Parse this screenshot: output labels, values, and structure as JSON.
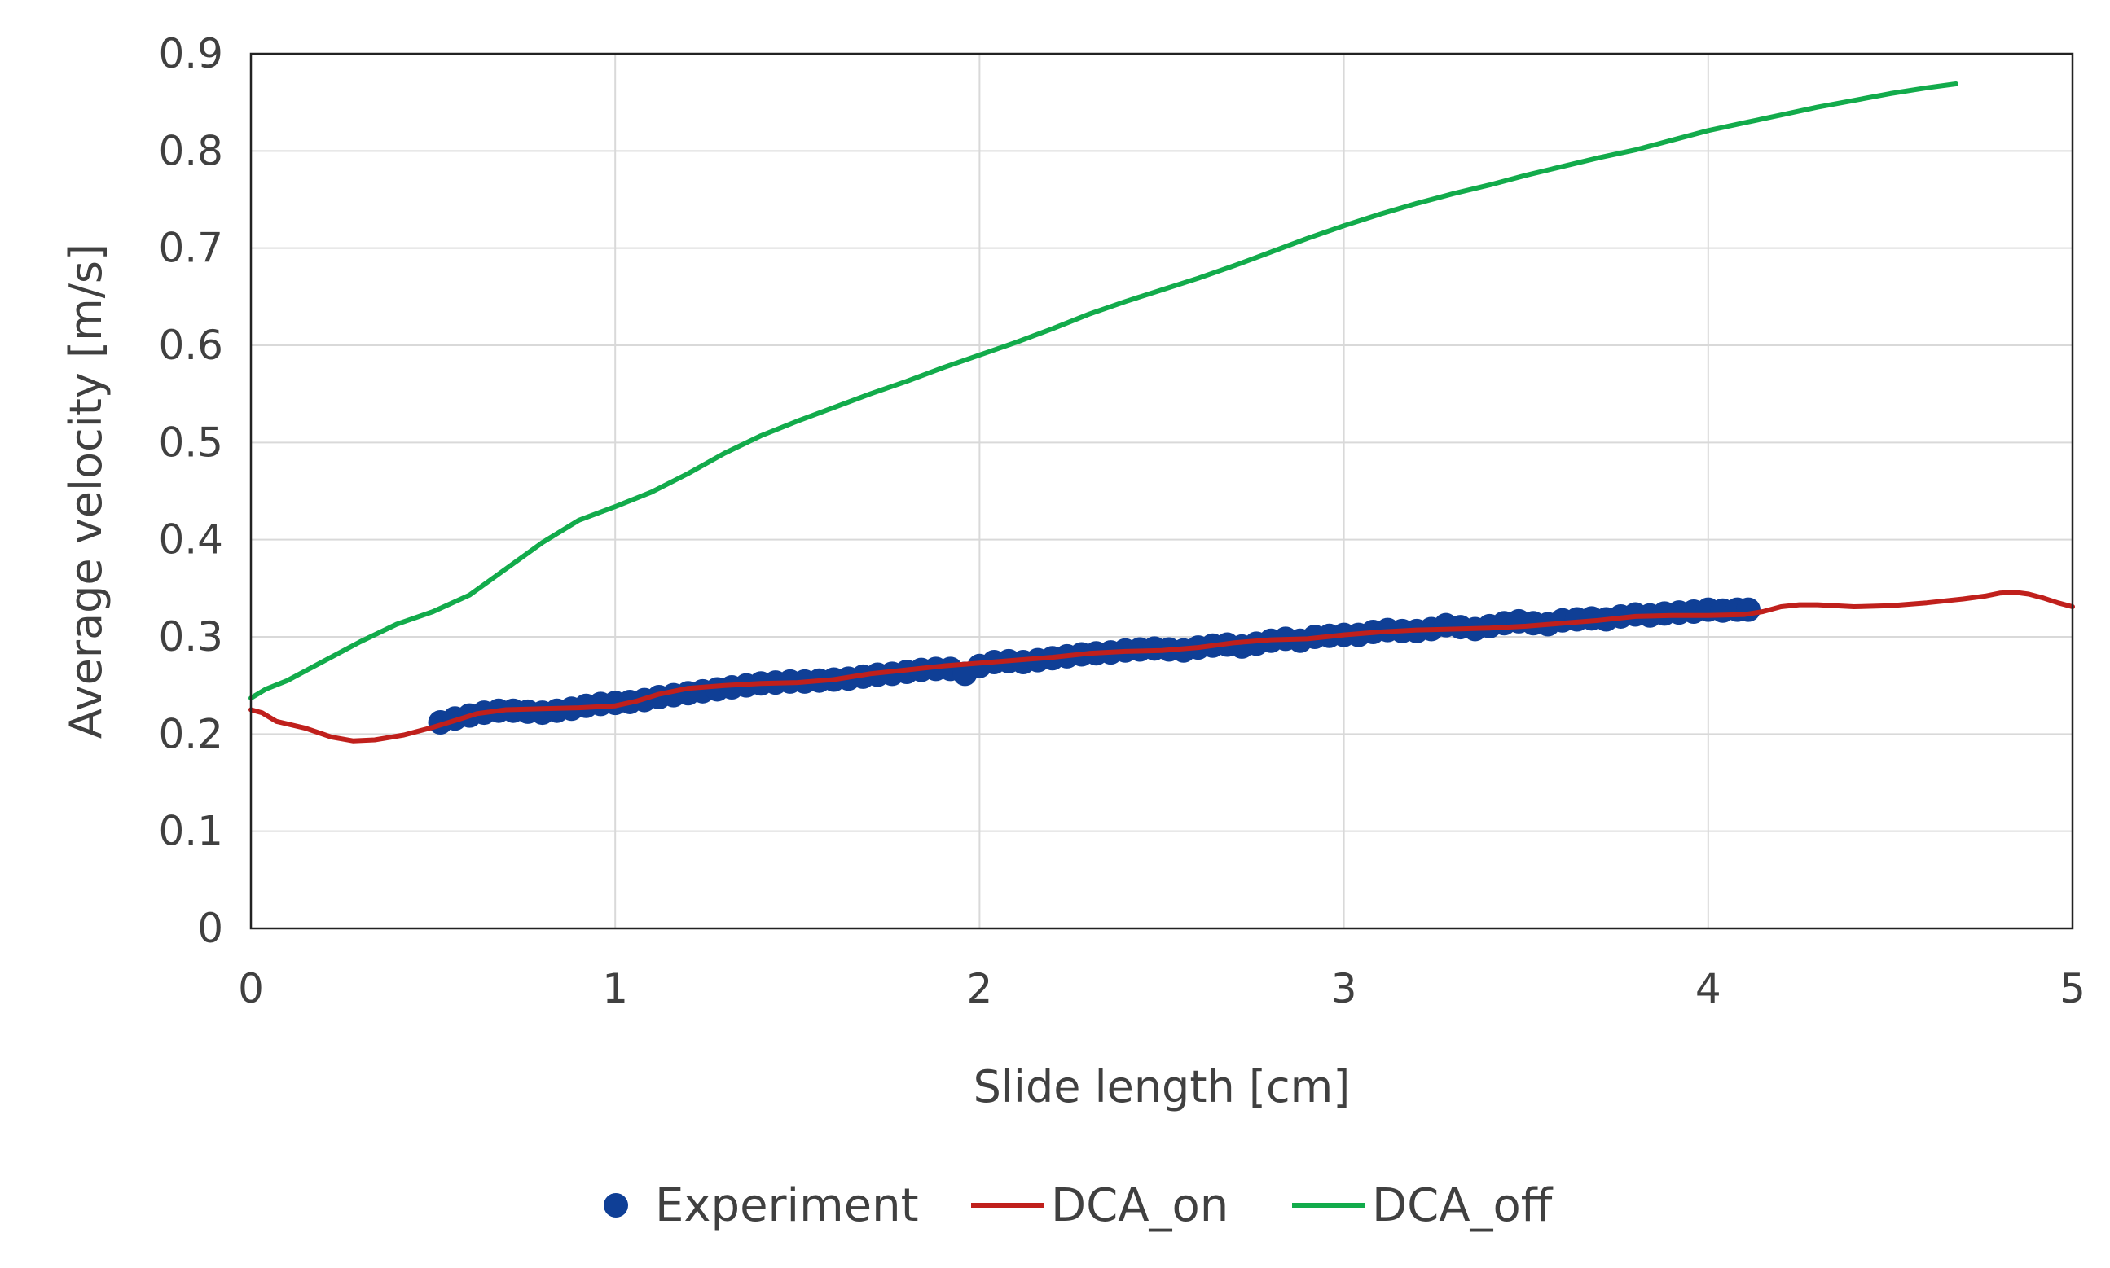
{
  "chart_data": {
    "type": "line",
    "title": "",
    "xlabel": "Slide length [cm]",
    "ylabel": "Average velocity [m/s]",
    "xlim": [
      0,
      5
    ],
    "ylim": [
      0,
      0.9
    ],
    "x_ticks": [
      "0",
      "1",
      "2",
      "3",
      "4",
      "5"
    ],
    "y_ticks": [
      "0",
      "0.1",
      "0.2",
      "0.3",
      "0.4",
      "0.5",
      "0.6",
      "0.7",
      "0.8",
      "0.9"
    ],
    "grid": true,
    "legend_position": "bottom",
    "series": [
      {
        "name": "Experiment",
        "kind": "scatter",
        "color": "#0f3f96",
        "points": [
          [
            0.52,
            0.212
          ],
          [
            0.56,
            0.216
          ],
          [
            0.6,
            0.219
          ],
          [
            0.64,
            0.222
          ],
          [
            0.68,
            0.224
          ],
          [
            0.72,
            0.224
          ],
          [
            0.76,
            0.223
          ],
          [
            0.8,
            0.222
          ],
          [
            0.84,
            0.224
          ],
          [
            0.88,
            0.226
          ],
          [
            0.92,
            0.229
          ],
          [
            0.96,
            0.231
          ],
          [
            1.0,
            0.232
          ],
          [
            1.04,
            0.233
          ],
          [
            1.08,
            0.235
          ],
          [
            1.12,
            0.238
          ],
          [
            1.16,
            0.24
          ],
          [
            1.2,
            0.242
          ],
          [
            1.24,
            0.244
          ],
          [
            1.28,
            0.246
          ],
          [
            1.32,
            0.248
          ],
          [
            1.36,
            0.25
          ],
          [
            1.4,
            0.252
          ],
          [
            1.44,
            0.253
          ],
          [
            1.48,
            0.254
          ],
          [
            1.52,
            0.254
          ],
          [
            1.56,
            0.255
          ],
          [
            1.6,
            0.256
          ],
          [
            1.64,
            0.257
          ],
          [
            1.68,
            0.259
          ],
          [
            1.72,
            0.261
          ],
          [
            1.76,
            0.262
          ],
          [
            1.8,
            0.264
          ],
          [
            1.84,
            0.266
          ],
          [
            1.88,
            0.267
          ],
          [
            1.92,
            0.267
          ],
          [
            1.96,
            0.262
          ],
          [
            2.0,
            0.27
          ],
          [
            2.04,
            0.274
          ],
          [
            2.08,
            0.275
          ],
          [
            2.12,
            0.274
          ],
          [
            2.16,
            0.276
          ],
          [
            2.2,
            0.278
          ],
          [
            2.24,
            0.28
          ],
          [
            2.28,
            0.282
          ],
          [
            2.32,
            0.283
          ],
          [
            2.36,
            0.284
          ],
          [
            2.4,
            0.286
          ],
          [
            2.44,
            0.287
          ],
          [
            2.48,
            0.288
          ],
          [
            2.52,
            0.287
          ],
          [
            2.56,
            0.286
          ],
          [
            2.6,
            0.289
          ],
          [
            2.64,
            0.291
          ],
          [
            2.68,
            0.292
          ],
          [
            2.72,
            0.29
          ],
          [
            2.76,
            0.293
          ],
          [
            2.8,
            0.296
          ],
          [
            2.84,
            0.298
          ],
          [
            2.88,
            0.296
          ],
          [
            2.92,
            0.3
          ],
          [
            2.96,
            0.301
          ],
          [
            3.0,
            0.302
          ],
          [
            3.04,
            0.302
          ],
          [
            3.08,
            0.305
          ],
          [
            3.12,
            0.307
          ],
          [
            3.16,
            0.306
          ],
          [
            3.2,
            0.306
          ],
          [
            3.24,
            0.308
          ],
          [
            3.28,
            0.312
          ],
          [
            3.32,
            0.31
          ],
          [
            3.36,
            0.308
          ],
          [
            3.4,
            0.311
          ],
          [
            3.44,
            0.314
          ],
          [
            3.48,
            0.316
          ],
          [
            3.52,
            0.314
          ],
          [
            3.56,
            0.313
          ],
          [
            3.6,
            0.317
          ],
          [
            3.64,
            0.318
          ],
          [
            3.68,
            0.319
          ],
          [
            3.72,
            0.318
          ],
          [
            3.76,
            0.321
          ],
          [
            3.8,
            0.323
          ],
          [
            3.84,
            0.322
          ],
          [
            3.88,
            0.324
          ],
          [
            3.92,
            0.325
          ],
          [
            3.96,
            0.326
          ],
          [
            4.0,
            0.328
          ],
          [
            4.04,
            0.327
          ],
          [
            4.08,
            0.328
          ],
          [
            4.11,
            0.328
          ]
        ]
      },
      {
        "name": "DCA_on",
        "kind": "line",
        "color": "#c0201c",
        "points": [
          [
            0.0,
            0.225
          ],
          [
            0.03,
            0.222
          ],
          [
            0.07,
            0.213
          ],
          [
            0.15,
            0.206
          ],
          [
            0.22,
            0.197
          ],
          [
            0.28,
            0.193
          ],
          [
            0.34,
            0.194
          ],
          [
            0.42,
            0.199
          ],
          [
            0.5,
            0.207
          ],
          [
            0.57,
            0.215
          ],
          [
            0.62,
            0.221
          ],
          [
            0.7,
            0.225
          ],
          [
            0.8,
            0.226
          ],
          [
            0.9,
            0.227
          ],
          [
            1.0,
            0.229
          ],
          [
            1.06,
            0.234
          ],
          [
            1.12,
            0.241
          ],
          [
            1.2,
            0.247
          ],
          [
            1.3,
            0.25
          ],
          [
            1.4,
            0.252
          ],
          [
            1.5,
            0.253
          ],
          [
            1.6,
            0.256
          ],
          [
            1.7,
            0.262
          ],
          [
            1.8,
            0.266
          ],
          [
            1.9,
            0.27
          ],
          [
            2.0,
            0.273
          ],
          [
            2.1,
            0.276
          ],
          [
            2.2,
            0.279
          ],
          [
            2.3,
            0.283
          ],
          [
            2.4,
            0.285
          ],
          [
            2.5,
            0.286
          ],
          [
            2.6,
            0.289
          ],
          [
            2.7,
            0.294
          ],
          [
            2.8,
            0.297
          ],
          [
            2.9,
            0.298
          ],
          [
            3.0,
            0.302
          ],
          [
            3.1,
            0.305
          ],
          [
            3.2,
            0.307
          ],
          [
            3.3,
            0.308
          ],
          [
            3.4,
            0.309
          ],
          [
            3.5,
            0.311
          ],
          [
            3.6,
            0.314
          ],
          [
            3.7,
            0.317
          ],
          [
            3.8,
            0.321
          ],
          [
            3.9,
            0.322
          ],
          [
            4.0,
            0.322
          ],
          [
            4.1,
            0.323
          ],
          [
            4.15,
            0.326
          ],
          [
            4.2,
            0.331
          ],
          [
            4.25,
            0.333
          ],
          [
            4.3,
            0.333
          ],
          [
            4.4,
            0.331
          ],
          [
            4.5,
            0.332
          ],
          [
            4.6,
            0.335
          ],
          [
            4.7,
            0.339
          ],
          [
            4.76,
            0.342
          ],
          [
            4.8,
            0.345
          ],
          [
            4.84,
            0.346
          ],
          [
            4.88,
            0.344
          ],
          [
            4.92,
            0.34
          ],
          [
            4.96,
            0.335
          ],
          [
            5.0,
            0.331
          ]
        ]
      },
      {
        "name": "DCA_off",
        "kind": "line",
        "color": "#12ab4b",
        "points": [
          [
            0.0,
            0.237
          ],
          [
            0.04,
            0.246
          ],
          [
            0.1,
            0.255
          ],
          [
            0.2,
            0.275
          ],
          [
            0.3,
            0.295
          ],
          [
            0.4,
            0.313
          ],
          [
            0.5,
            0.326
          ],
          [
            0.6,
            0.343
          ],
          [
            0.7,
            0.37
          ],
          [
            0.8,
            0.397
          ],
          [
            0.9,
            0.42
          ],
          [
            1.0,
            0.434
          ],
          [
            1.1,
            0.449
          ],
          [
            1.2,
            0.468
          ],
          [
            1.3,
            0.489
          ],
          [
            1.4,
            0.507
          ],
          [
            1.5,
            0.522
          ],
          [
            1.6,
            0.536
          ],
          [
            1.7,
            0.55
          ],
          [
            1.8,
            0.563
          ],
          [
            1.9,
            0.577
          ],
          [
            2.0,
            0.59
          ],
          [
            2.1,
            0.603
          ],
          [
            2.2,
            0.617
          ],
          [
            2.3,
            0.632
          ],
          [
            2.4,
            0.645
          ],
          [
            2.5,
            0.657
          ],
          [
            2.6,
            0.669
          ],
          [
            2.7,
            0.682
          ],
          [
            2.8,
            0.696
          ],
          [
            2.9,
            0.71
          ],
          [
            3.0,
            0.723
          ],
          [
            3.1,
            0.735
          ],
          [
            3.2,
            0.746
          ],
          [
            3.3,
            0.756
          ],
          [
            3.4,
            0.765
          ],
          [
            3.5,
            0.775
          ],
          [
            3.6,
            0.784
          ],
          [
            3.7,
            0.793
          ],
          [
            3.8,
            0.801
          ],
          [
            3.9,
            0.811
          ],
          [
            4.0,
            0.821
          ],
          [
            4.1,
            0.829
          ],
          [
            4.2,
            0.837
          ],
          [
            4.3,
            0.845
          ],
          [
            4.4,
            0.852
          ],
          [
            4.5,
            0.859
          ],
          [
            4.6,
            0.865
          ],
          [
            4.68,
            0.869
          ]
        ]
      }
    ]
  }
}
